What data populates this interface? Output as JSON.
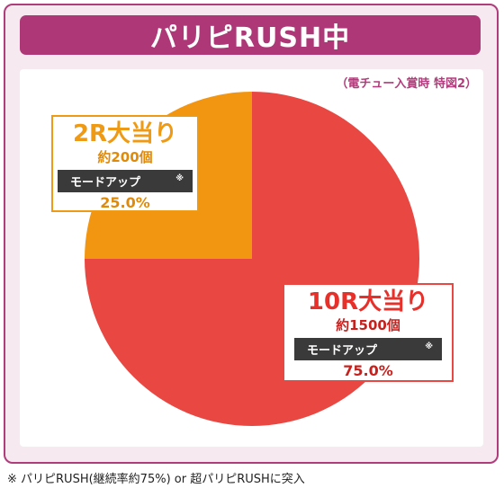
{
  "header": {
    "title": "パリピRUSH中"
  },
  "condition_note": "（電チュー入賞時 特図2）",
  "footnote": "※ パリピRUSH(継続率約75%) or 超パリピRUSHに突入",
  "chart_data": {
    "type": "pie",
    "title": "パリピRUSH中",
    "subtitle": "（電チュー入賞時 特図2）",
    "slices": [
      {
        "label": "10R大当り",
        "count": "約1500個",
        "mode": "モードアップ",
        "mark": "※",
        "value": 75.0,
        "display": "75.0%",
        "color": "#e94742"
      },
      {
        "label": "2R大当り",
        "count": "約200個",
        "mode": "モードアップ",
        "mark": "※",
        "value": 25.0,
        "display": "25.0%",
        "color": "#f29511"
      }
    ]
  }
}
